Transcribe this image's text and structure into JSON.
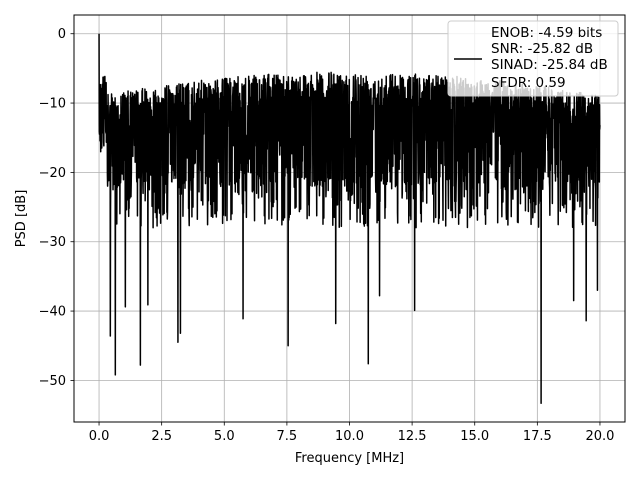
{
  "chart_data": {
    "type": "line",
    "xlabel": "Frequency [MHz]",
    "ylabel": "PSD [dB]",
    "xlim": [
      -1.0,
      21.0
    ],
    "ylim": [
      -56.0,
      2.7
    ],
    "x_range": [
      0.0,
      20.0
    ],
    "x_ticks": [
      0.0,
      2.5,
      5.0,
      7.5,
      10.0,
      12.5,
      15.0,
      17.5,
      20.0
    ],
    "x_tick_labels": [
      "0.0",
      "2.5",
      "5.0",
      "7.5",
      "10.0",
      "12.5",
      "15.0",
      "17.5",
      "20.0"
    ],
    "y_ticks": [
      0,
      -10,
      -20,
      -30,
      -40,
      -50
    ],
    "y_tick_labels": [
      "0",
      "−10",
      "−20",
      "−30",
      "−40",
      "−50"
    ],
    "grid": true,
    "legend_position": "top-right",
    "series": [
      {
        "name": "ENOB: -4.59 bits\nSNR: -25.82 dB\nSINAD: -25.84 dB\nSFDR: 0.59",
        "color": "#000000",
        "legend_lines": [
          "ENOB: -4.59 bits",
          "SNR: -25.82 dB",
          "SINAD: -25.84 dB",
          "SFDR: 0.59"
        ],
        "envelope_note": "dense noise spectrum between about -25 and -8 dB",
        "peaks": [
          {
            "x": 0.0,
            "y": 0.0
          }
        ],
        "dips": [
          {
            "x": 0.45,
            "y": -43.6
          },
          {
            "x": 0.65,
            "y": -49.2
          },
          {
            "x": 1.05,
            "y": -39.4
          },
          {
            "x": 1.65,
            "y": -47.8
          },
          {
            "x": 1.95,
            "y": -39.1
          },
          {
            "x": 3.15,
            "y": -44.5
          },
          {
            "x": 3.25,
            "y": -43.2
          },
          {
            "x": 5.75,
            "y": -41.1
          },
          {
            "x": 7.55,
            "y": -45.0
          },
          {
            "x": 9.45,
            "y": -41.8
          },
          {
            "x": 10.75,
            "y": -47.6
          },
          {
            "x": 11.2,
            "y": -37.8
          },
          {
            "x": 12.6,
            "y": -39.9
          },
          {
            "x": 17.65,
            "y": -53.3
          },
          {
            "x": 18.95,
            "y": -38.5
          },
          {
            "x": 19.45,
            "y": -41.4
          },
          {
            "x": 19.9,
            "y": -37.0
          }
        ]
      }
    ]
  }
}
